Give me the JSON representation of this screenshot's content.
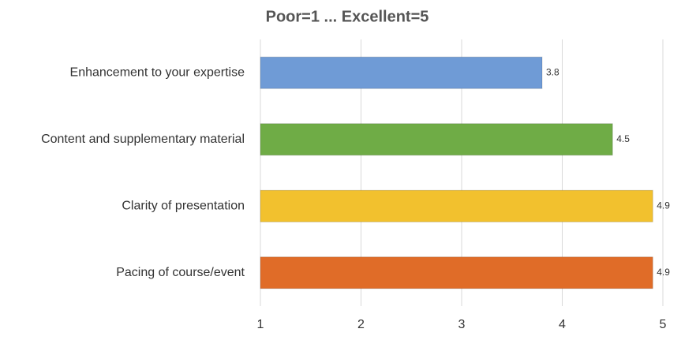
{
  "chart_data": {
    "type": "bar",
    "orientation": "horizontal",
    "title": "Poor=1 ... Excellent=5",
    "categories": [
      "Enhancement to your expertise",
      "Content and supplementary material",
      "Clarity of presentation",
      "Pacing of course/event"
    ],
    "values": [
      3.8,
      4.5,
      4.9,
      4.9
    ],
    "colors": [
      "#6f9bd6",
      "#6fac46",
      "#f2c12e",
      "#e06c28"
    ],
    "xlim": [
      1,
      5
    ],
    "xticks": [
      1,
      2,
      3,
      4,
      5
    ],
    "grid": true
  }
}
